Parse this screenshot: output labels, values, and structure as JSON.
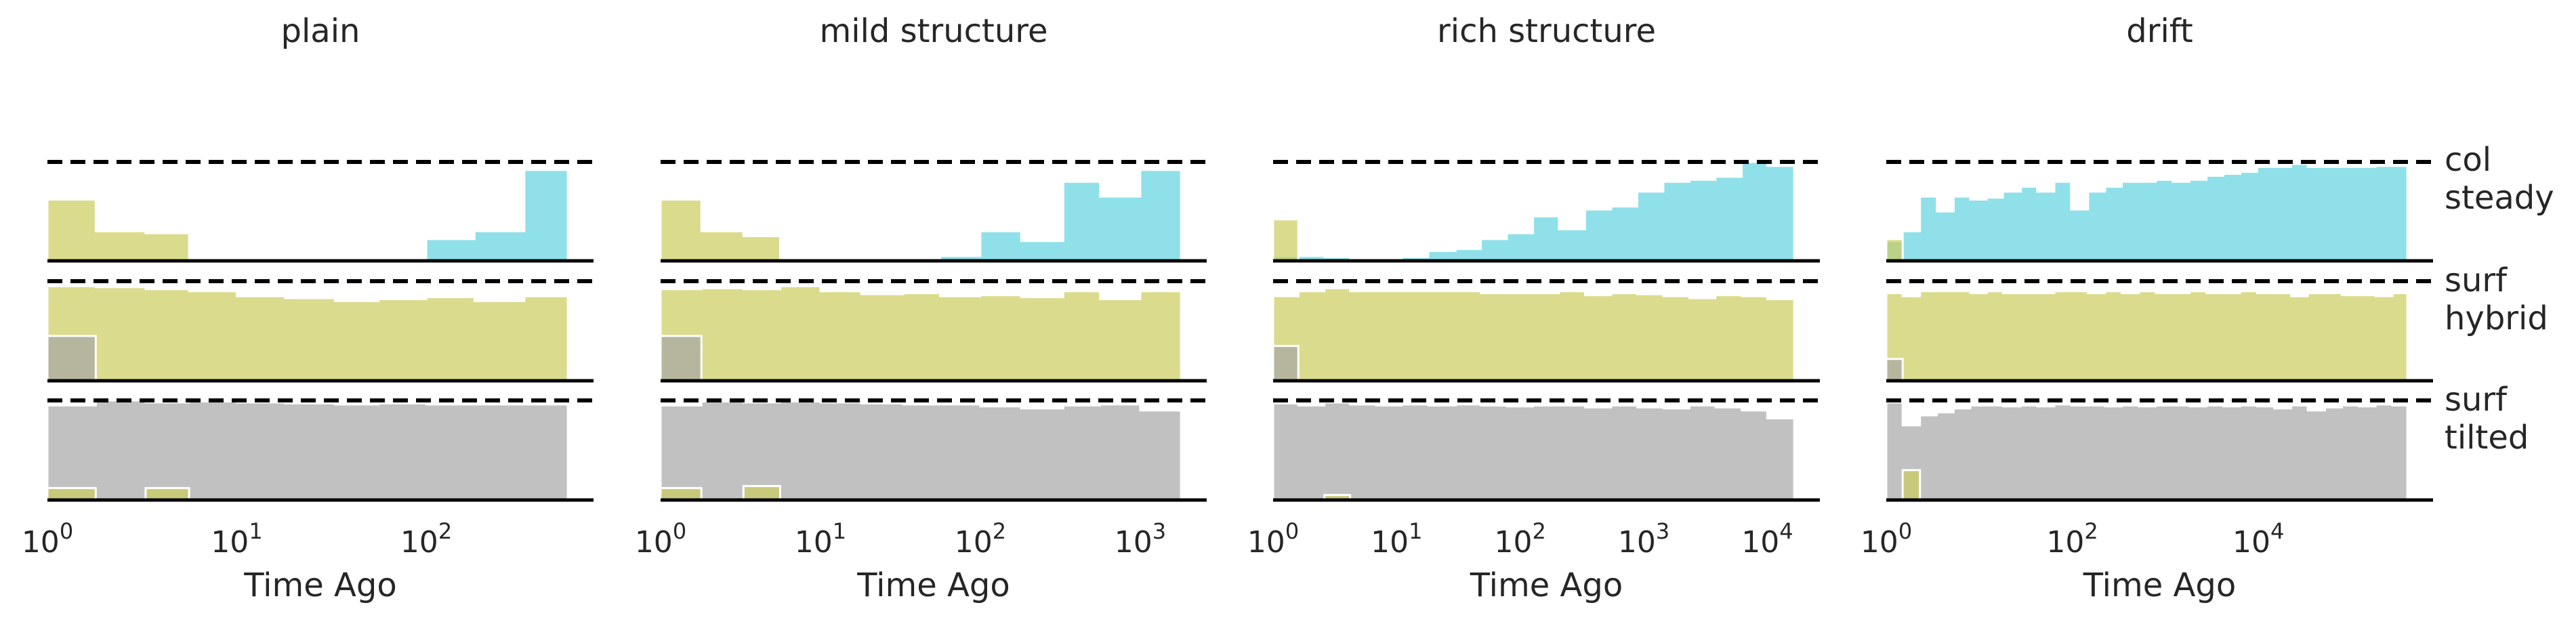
{
  "colors": {
    "col": "#5fd3e0",
    "surf_hybrid": "#cccc5c",
    "surf_tilted": "#a6a6a6",
    "background": "#ffffff",
    "line": "#000000"
  },
  "row_labels": [
    "col\nsteady",
    "surf\nhybrid",
    "surf\ntilted"
  ],
  "chart_data": [
    {
      "type": "area",
      "title": "plain",
      "xlabel": "Time Ago",
      "xscale": "log",
      "xlim": [
        1,
        600
      ],
      "xticks": [
        {
          "value": 1,
          "label": "10^0"
        },
        {
          "value": 10,
          "label": "10^1"
        },
        {
          "value": 100,
          "label": "10^2"
        }
      ],
      "grid": false,
      "edges": [
        1,
        1.8,
        3.3,
        5.6,
        10,
        18,
        33,
        56,
        100,
        180,
        330,
        560
      ],
      "series": [
        {
          "name": "col",
          "row": 0,
          "color": "#5fd3e0",
          "values": [
            0,
            0,
            0,
            0,
            0,
            0,
            0,
            0,
            0.22,
            0.3,
            0.92
          ]
        },
        {
          "name": "col",
          "row": 0,
          "color": "#cccc5c",
          "values": [
            0.62,
            0.3,
            0.28,
            0,
            0,
            0,
            0,
            0,
            0,
            0,
            0
          ]
        },
        {
          "name": "surf",
          "row": 1,
          "color": "#cccc5c",
          "values": [
            0.95,
            0.94,
            0.92,
            0.9,
            0.85,
            0.83,
            0.8,
            0.82,
            0.84,
            0.8,
            0.85
          ]
        },
        {
          "name": "surf",
          "row": 1,
          "color": "#a6a6a6",
          "values": [
            0.45,
            0,
            0,
            0,
            0,
            0,
            0,
            0,
            0,
            0,
            0
          ]
        },
        {
          "name": "surf",
          "row": 2,
          "color": "#a6a6a6",
          "values": [
            0.95,
            1.0,
            0.98,
            0.99,
            0.98,
            0.97,
            0.96,
            0.97,
            0.96,
            0.96,
            0.96
          ]
        },
        {
          "name": "surf",
          "row": 2,
          "color": "#cccc5c",
          "values": [
            0.12,
            0,
            0.12,
            0,
            0,
            0,
            0,
            0,
            0,
            0,
            0
          ]
        }
      ]
    },
    {
      "type": "area",
      "title": "mild structure",
      "xlabel": "Time Ago",
      "xscale": "log",
      "xlim": [
        1,
        2500
      ],
      "xticks": [
        {
          "value": 1,
          "label": "10^0"
        },
        {
          "value": 10,
          "label": "10^1"
        },
        {
          "value": 100,
          "label": "10^2"
        },
        {
          "value": 1000,
          "label": "10^3"
        }
      ],
      "grid": false,
      "edges": [
        1,
        1.8,
        3.3,
        5.6,
        10,
        18,
        33,
        56,
        100,
        180,
        330,
        560,
        1000,
        1800
      ],
      "series": [
        {
          "name": "col",
          "row": 0,
          "color": "#5fd3e0",
          "values": [
            0,
            0,
            0,
            0,
            0,
            0,
            0,
            0.05,
            0.3,
            0.2,
            0.8,
            0.65,
            0.92
          ]
        },
        {
          "name": "col",
          "row": 0,
          "color": "#cccc5c",
          "values": [
            0.62,
            0.3,
            0.25,
            0,
            0,
            0,
            0,
            0,
            0,
            0,
            0,
            0,
            0
          ]
        },
        {
          "name": "surf",
          "row": 1,
          "color": "#cccc5c",
          "values": [
            0.92,
            0.93,
            0.92,
            0.95,
            0.9,
            0.87,
            0.88,
            0.85,
            0.86,
            0.84,
            0.9,
            0.82,
            0.9
          ]
        },
        {
          "name": "surf",
          "row": 1,
          "color": "#a6a6a6",
          "values": [
            0.45,
            0,
            0,
            0,
            0,
            0,
            0,
            0,
            0,
            0,
            0,
            0,
            0
          ]
        },
        {
          "name": "surf",
          "row": 2,
          "color": "#a6a6a6",
          "values": [
            0.95,
            0.99,
            0.98,
            0.99,
            0.98,
            0.97,
            0.96,
            0.96,
            0.94,
            0.92,
            0.95,
            0.96,
            0.9
          ]
        },
        {
          "name": "surf",
          "row": 2,
          "color": "#cccc5c",
          "values": [
            0.12,
            0,
            0.14,
            0,
            0,
            0,
            0,
            0,
            0,
            0,
            0,
            0,
            0
          ]
        }
      ]
    },
    {
      "type": "area",
      "title": "rich structure",
      "xlabel": "Time Ago",
      "xscale": "log",
      "xlim": [
        1,
        25000
      ],
      "xticks": [
        {
          "value": 1,
          "label": "10^0"
        },
        {
          "value": 10,
          "label": "10^1"
        },
        {
          "value": 100,
          "label": "10^2"
        },
        {
          "value": 1000,
          "label": "10^3"
        },
        {
          "value": 10000,
          "label": "10^4"
        }
      ],
      "grid": false,
      "edges": [
        1,
        1.6,
        2.6,
        4.2,
        6.8,
        11,
        18,
        30,
        48,
        78,
        127,
        206,
        335,
        545,
        886,
        1440,
        2340,
        3800,
        6200,
        10000,
        16500
      ],
      "series": [
        {
          "name": "col",
          "row": 0,
          "color": "#5fd3e0",
          "values": [
            0.05,
            0.05,
            0.04,
            0.02,
            0.02,
            0.04,
            0.1,
            0.12,
            0.22,
            0.28,
            0.45,
            0.32,
            0.52,
            0.55,
            0.7,
            0.8,
            0.82,
            0.85,
            1.0,
            0.96
          ]
        },
        {
          "name": "col",
          "row": 0,
          "color": "#cccc5c",
          "values": [
            0.42,
            0,
            0,
            0,
            0,
            0,
            0,
            0,
            0,
            0,
            0,
            0,
            0,
            0,
            0,
            0,
            0,
            0,
            0,
            0
          ]
        },
        {
          "name": "surf",
          "row": 1,
          "color": "#cccc5c",
          "values": [
            0.85,
            0.9,
            0.93,
            0.9,
            0.9,
            0.9,
            0.9,
            0.9,
            0.88,
            0.88,
            0.88,
            0.9,
            0.86,
            0.88,
            0.87,
            0.85,
            0.83,
            0.86,
            0.85,
            0.82
          ]
        },
        {
          "name": "surf",
          "row": 1,
          "color": "#a6a6a6",
          "values": [
            0.35,
            0,
            0,
            0,
            0,
            0,
            0,
            0,
            0,
            0,
            0,
            0,
            0,
            0,
            0,
            0,
            0,
            0,
            0,
            0
          ]
        },
        {
          "name": "surf",
          "row": 2,
          "color": "#a6a6a6",
          "values": [
            0.97,
            0.95,
            0.98,
            0.96,
            0.95,
            0.96,
            0.95,
            0.96,
            0.95,
            0.94,
            0.95,
            0.95,
            0.93,
            0.95,
            0.93,
            0.92,
            0.95,
            0.93,
            0.9,
            0.82
          ]
        },
        {
          "name": "surf",
          "row": 2,
          "color": "#cccc5c",
          "values": [
            0,
            0,
            0.05,
            0,
            0,
            0,
            0,
            0,
            0,
            0,
            0,
            0,
            0,
            0,
            0,
            0,
            0,
            0,
            0,
            0
          ]
        }
      ]
    },
    {
      "type": "area",
      "title": "drift",
      "xlabel": "Time Ago",
      "xscale": "log",
      "xlim": [
        1,
        400000
      ],
      "xticks": [
        {
          "value": 1,
          "label": "10^0"
        },
        {
          "value": 100,
          "label": "10^2"
        },
        {
          "value": 10000,
          "label": "10^4"
        }
      ],
      "grid": false,
      "edges": [
        1,
        1.5,
        2.3,
        3.5,
        5.3,
        8,
        12,
        18,
        28,
        42,
        64,
        97,
        148,
        225,
        340,
        520,
        790,
        1200,
        1820,
        2770,
        4200,
        6400,
        9700,
        14800,
        22500,
        34000,
        52000,
        79000,
        120000,
        182000,
        277000,
        400000
      ],
      "series": [
        {
          "name": "col",
          "row": 0,
          "color": "#5fd3e0",
          "values": [
            0.2,
            0.3,
            0.65,
            0.5,
            0.65,
            0.62,
            0.64,
            0.7,
            0.75,
            0.7,
            0.8,
            0.52,
            0.7,
            0.75,
            0.8,
            0.8,
            0.82,
            0.8,
            0.82,
            0.86,
            0.88,
            0.9,
            0.95,
            0.95,
            0.98,
            0.95,
            0.95,
            0.95,
            0.95,
            0.96,
            0.96
          ]
        },
        {
          "name": "col",
          "row": 0,
          "color": "#cccc5c",
          "values": [
            0.22,
            0,
            0,
            0,
            0,
            0,
            0,
            0,
            0,
            0,
            0,
            0,
            0,
            0,
            0,
            0,
            0,
            0,
            0,
            0,
            0,
            0,
            0,
            0,
            0,
            0,
            0,
            0,
            0,
            0,
            0
          ]
        },
        {
          "name": "surf",
          "row": 1,
          "color": "#cccc5c",
          "values": [
            0.88,
            0.85,
            0.9,
            0.9,
            0.9,
            0.88,
            0.9,
            0.88,
            0.88,
            0.88,
            0.9,
            0.9,
            0.88,
            0.9,
            0.88,
            0.9,
            0.88,
            0.88,
            0.9,
            0.88,
            0.88,
            0.9,
            0.88,
            0.88,
            0.85,
            0.88,
            0.88,
            0.86,
            0.86,
            0.85,
            0.88
          ]
        },
        {
          "name": "surf",
          "row": 1,
          "color": "#a6a6a6",
          "values": [
            0.22,
            0,
            0,
            0,
            0,
            0,
            0,
            0,
            0,
            0,
            0,
            0,
            0,
            0,
            0,
            0,
            0,
            0,
            0,
            0,
            0,
            0,
            0,
            0,
            0,
            0,
            0,
            0,
            0,
            0,
            0
          ]
        },
        {
          "name": "surf",
          "row": 2,
          "color": "#a6a6a6",
          "values": [
            0.98,
            0.75,
            0.85,
            0.88,
            0.92,
            0.95,
            0.95,
            0.94,
            0.95,
            0.94,
            0.96,
            0.95,
            0.95,
            0.94,
            0.95,
            0.94,
            0.95,
            0.95,
            0.94,
            0.95,
            0.94,
            0.95,
            0.94,
            0.92,
            0.95,
            0.9,
            0.93,
            0.95,
            0.94,
            0.96,
            0.95
          ]
        },
        {
          "name": "surf",
          "row": 2,
          "color": "#cccc5c",
          "values": [
            0,
            0.3,
            0,
            0,
            0,
            0,
            0,
            0,
            0,
            0,
            0,
            0,
            0,
            0,
            0,
            0,
            0,
            0,
            0,
            0,
            0,
            0,
            0,
            0,
            0,
            0,
            0,
            0,
            0,
            0,
            0
          ]
        }
      ]
    }
  ]
}
